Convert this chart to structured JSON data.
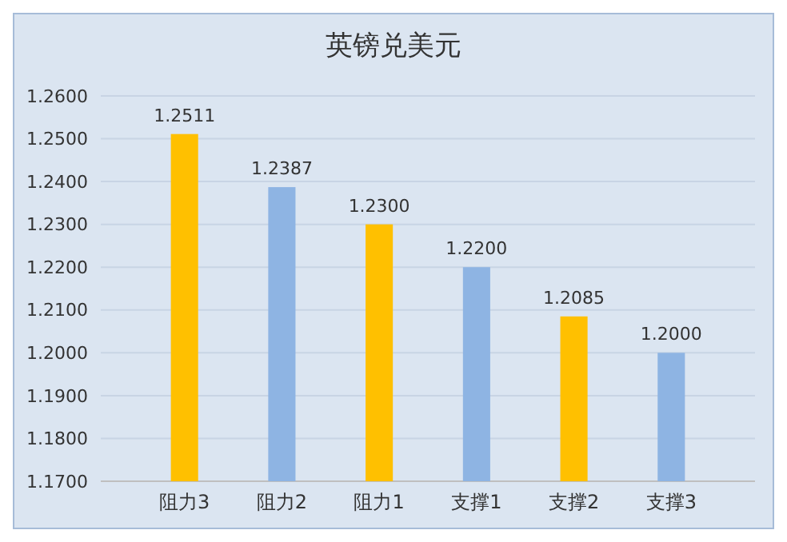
{
  "chart_data": {
    "type": "bar",
    "title": "英镑兑美元",
    "categories": [
      "阻力3",
      "阻力2",
      "阻力1",
      "支撑1",
      "支撑2",
      "支撑3"
    ],
    "values": [
      1.2511,
      1.2387,
      1.23,
      1.22,
      1.2085,
      1.2
    ],
    "colors": [
      "#ffc000",
      "#8eb4e3",
      "#ffc000",
      "#8eb4e3",
      "#ffc000",
      "#8eb4e3"
    ],
    "value_labels": [
      "1.2511",
      "1.2387",
      "1.2300",
      "1.2200",
      "1.2085",
      "1.2000"
    ],
    "ylim": [
      1.17,
      1.26
    ],
    "yticks": [
      {
        "value": 1.17,
        "label": "1.1700"
      },
      {
        "value": 1.18,
        "label": "1.1800"
      },
      {
        "value": 1.19,
        "label": "1.1900"
      },
      {
        "value": 1.2,
        "label": "1.2000"
      },
      {
        "value": 1.21,
        "label": "1.2100"
      },
      {
        "value": 1.22,
        "label": "1.2200"
      },
      {
        "value": 1.23,
        "label": "1.2300"
      },
      {
        "value": 1.24,
        "label": "1.2400"
      },
      {
        "value": 1.25,
        "label": "1.2500"
      },
      {
        "value": 1.26,
        "label": "1.2600"
      }
    ],
    "grid": "y"
  }
}
